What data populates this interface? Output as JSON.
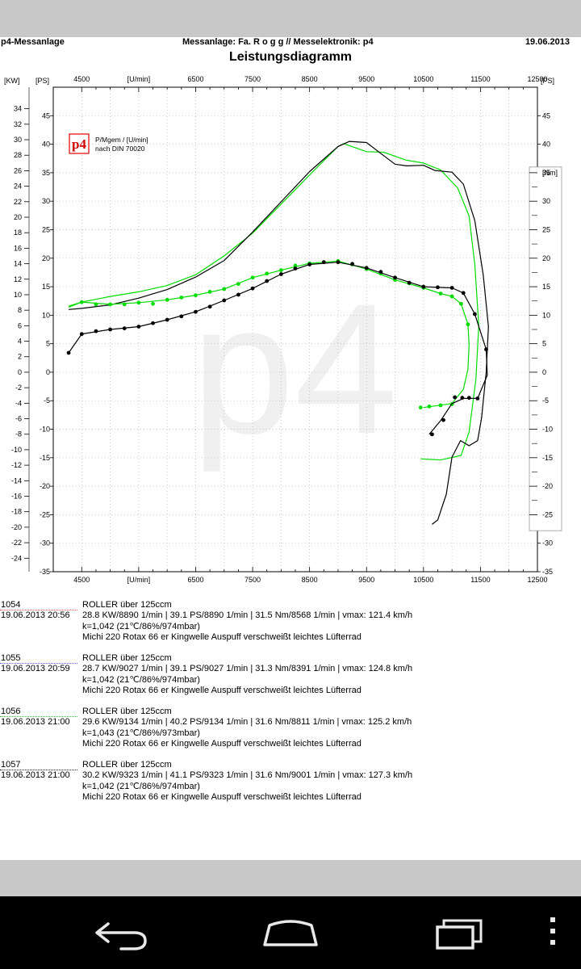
{
  "header": {
    "left": "p4-Messanlage",
    "center": "Messanlage: Fa. R o g g  //  Messelektronik: p4",
    "date": "19.06.2013",
    "title": "Leistungsdiagramm"
  },
  "chart_data": {
    "type": "line",
    "x_label": "[U/min]",
    "x_ticks": [
      "4500",
      "[U/min]",
      "6500",
      "7500",
      "8500",
      "9500",
      "10500",
      "11500",
      "12500"
    ],
    "xlim": [
      4000,
      12500
    ],
    "kw_unit": "[KW]",
    "ps_unit": "[PS]",
    "nm_unit": "[Nm]",
    "kw_ticks": [
      34,
      32,
      30,
      28,
      26,
      24,
      22,
      20,
      18,
      16,
      14,
      12,
      10,
      8,
      6,
      4,
      2,
      0,
      -2,
      -4,
      -6,
      -8,
      -10,
      -12,
      -14,
      -16,
      -18,
      -20,
      -22,
      -24
    ],
    "ps_ticks": [
      45,
      40,
      35,
      30,
      25,
      20,
      15,
      10,
      5,
      0,
      -5,
      -10,
      -15,
      -20,
      -25,
      -30,
      -35
    ],
    "nm_ticks": [
      35,
      30,
      25,
      20,
      15,
      10,
      5,
      0,
      -5,
      -10,
      -15,
      -20,
      -25
    ],
    "ps_range": [
      -35,
      50
    ],
    "legend_lines": [
      "P/Mgem / [U/min]",
      "nach DIN 70020"
    ],
    "logo_text": "p4",
    "watermark": "p4",
    "series": [
      {
        "kind": "power_ps",
        "color": "#00dd00",
        "points": [
          [
            4270,
            11.4
          ],
          [
            4500,
            12.3
          ],
          [
            5000,
            13.3
          ],
          [
            5500,
            14.1
          ],
          [
            6000,
            15.2
          ],
          [
            6500,
            17.1
          ],
          [
            7000,
            20.4
          ],
          [
            7500,
            24.4
          ],
          [
            8000,
            29.5
          ],
          [
            8500,
            34.6
          ],
          [
            9000,
            39.6
          ],
          [
            9100,
            40.1
          ],
          [
            9500,
            38.7
          ],
          [
            9800,
            38.6
          ],
          [
            10000,
            37.9
          ],
          [
            10200,
            37.2
          ],
          [
            10500,
            36.7
          ],
          [
            10800,
            35.5
          ],
          [
            11100,
            32.3
          ],
          [
            11300,
            27.4
          ],
          [
            11400,
            18.9
          ],
          [
            11470,
            8.2
          ],
          [
            11420,
            -1.2
          ],
          [
            11300,
            -10.5
          ],
          [
            11160,
            -14.6
          ],
          [
            10800,
            -15.4
          ],
          [
            10450,
            -15.2
          ]
        ]
      },
      {
        "kind": "power_ps",
        "color": "#000000",
        "points": [
          [
            4270,
            11.0
          ],
          [
            4500,
            11.2
          ],
          [
            5000,
            11.8
          ],
          [
            5500,
            13.0
          ],
          [
            6000,
            14.5
          ],
          [
            6500,
            16.7
          ],
          [
            7000,
            19.6
          ],
          [
            7500,
            24.6
          ],
          [
            8000,
            29.9
          ],
          [
            8500,
            35.2
          ],
          [
            9000,
            39.6
          ],
          [
            9200,
            40.5
          ],
          [
            9500,
            40.3
          ],
          [
            9800,
            38.0
          ],
          [
            10000,
            36.5
          ],
          [
            10200,
            36.2
          ],
          [
            10500,
            36.3
          ],
          [
            10700,
            35.4
          ],
          [
            11000,
            35.1
          ],
          [
            11200,
            33.0
          ],
          [
            11400,
            26.6
          ],
          [
            11550,
            17.0
          ],
          [
            11640,
            8.0
          ],
          [
            11600,
            0.0
          ],
          [
            11520,
            -8.0
          ],
          [
            11450,
            -12.0
          ],
          [
            11300,
            -12.9
          ],
          [
            11150,
            -12.0
          ],
          [
            11000,
            -14.9
          ],
          [
            10900,
            -21.4
          ],
          [
            10750,
            -25.9
          ],
          [
            10650,
            -26.7
          ]
        ]
      },
      {
        "kind": "torque_nm",
        "color": "#00dd00",
        "points": [
          [
            4270,
            11.6
          ],
          [
            4500,
            12.3
          ],
          [
            5000,
            11.9
          ],
          [
            5500,
            12.2
          ],
          [
            6000,
            12.7
          ],
          [
            6500,
            13.5
          ],
          [
            7000,
            14.6
          ],
          [
            7500,
            16.6
          ],
          [
            8000,
            17.9
          ],
          [
            8500,
            19.1
          ],
          [
            9000,
            19.5
          ],
          [
            9500,
            18.1
          ],
          [
            10000,
            16.2
          ],
          [
            10500,
            14.8
          ],
          [
            10800,
            13.8
          ],
          [
            11000,
            13.3
          ],
          [
            11160,
            12.0
          ],
          [
            11280,
            8.4
          ],
          [
            11300,
            4.8
          ],
          [
            11280,
            0.5
          ],
          [
            11200,
            -3.0
          ],
          [
            11000,
            -5.5
          ],
          [
            10500,
            -6.2
          ]
        ],
        "dots": [
          [
            4500,
            12.3
          ],
          [
            4750,
            11.9
          ],
          [
            5000,
            11.9
          ],
          [
            5250,
            11.9
          ],
          [
            5500,
            12.2
          ],
          [
            5750,
            12.0
          ],
          [
            6000,
            12.7
          ],
          [
            6250,
            13.1
          ],
          [
            6500,
            13.5
          ],
          [
            6750,
            14.1
          ],
          [
            7000,
            14.6
          ],
          [
            7250,
            15.5
          ],
          [
            7500,
            16.6
          ],
          [
            7750,
            17.3
          ],
          [
            8000,
            17.9
          ],
          [
            8250,
            18.7
          ],
          [
            8500,
            19.1
          ],
          [
            8750,
            19.3
          ],
          [
            9000,
            19.5
          ],
          [
            9250,
            18.9
          ],
          [
            9500,
            18.1
          ],
          [
            9750,
            17.3
          ],
          [
            10000,
            16.2
          ],
          [
            10250,
            15.6
          ],
          [
            10500,
            14.8
          ],
          [
            10800,
            13.8
          ],
          [
            11000,
            13.3
          ],
          [
            11160,
            12.0
          ],
          [
            11280,
            8.4
          ],
          [
            11000,
            -5.6
          ],
          [
            10800,
            -5.8
          ],
          [
            10600,
            -6.0
          ],
          [
            10450,
            -6.2
          ]
        ]
      },
      {
        "kind": "torque_nm",
        "color": "#000000",
        "points": [
          [
            4270,
            3.4
          ],
          [
            4500,
            6.7
          ],
          [
            5000,
            7.5
          ],
          [
            5500,
            8.0
          ],
          [
            6000,
            9.2
          ],
          [
            6500,
            10.6
          ],
          [
            7000,
            12.6
          ],
          [
            7500,
            14.7
          ],
          [
            8000,
            17.2
          ],
          [
            8500,
            18.9
          ],
          [
            9000,
            19.3
          ],
          [
            9500,
            18.3
          ],
          [
            10000,
            16.6
          ],
          [
            10500,
            15.0
          ],
          [
            11000,
            14.8
          ],
          [
            11200,
            13.9
          ],
          [
            11400,
            10.2
          ],
          [
            11600,
            4.0
          ],
          [
            11620,
            -0.5
          ],
          [
            11450,
            -4.6
          ],
          [
            11200,
            -4.6
          ],
          [
            11000,
            -5.5
          ],
          [
            10800,
            -8.5
          ],
          [
            10600,
            -10.9
          ]
        ],
        "dots": [
          [
            4270,
            3.4
          ],
          [
            4500,
            6.7
          ],
          [
            4750,
            7.2
          ],
          [
            5000,
            7.5
          ],
          [
            5250,
            7.7
          ],
          [
            5500,
            8.0
          ],
          [
            5750,
            8.6
          ],
          [
            6000,
            9.2
          ],
          [
            6250,
            9.8
          ],
          [
            6500,
            10.6
          ],
          [
            6750,
            11.5
          ],
          [
            7000,
            12.6
          ],
          [
            7250,
            13.6
          ],
          [
            7500,
            14.7
          ],
          [
            7750,
            16.0
          ],
          [
            8000,
            17.2
          ],
          [
            8250,
            18.2
          ],
          [
            8500,
            18.9
          ],
          [
            8750,
            19.3
          ],
          [
            9000,
            19.3
          ],
          [
            9250,
            19.0
          ],
          [
            9500,
            18.3
          ],
          [
            9750,
            17.6
          ],
          [
            10000,
            16.6
          ],
          [
            10250,
            15.7
          ],
          [
            10500,
            15.0
          ],
          [
            10750,
            14.9
          ],
          [
            11000,
            14.8
          ],
          [
            11200,
            13.9
          ],
          [
            11400,
            10.2
          ],
          [
            11600,
            4.0
          ],
          [
            11450,
            -4.6
          ],
          [
            11300,
            -4.5
          ],
          [
            11180,
            -4.5
          ],
          [
            11050,
            -4.4
          ],
          [
            10850,
            -8.4
          ],
          [
            10650,
            -10.9
          ]
        ]
      }
    ]
  },
  "runs": [
    {
      "num": "1054",
      "date": "19.06.2013  20:56",
      "line1": "ROLLER über 125ccm",
      "line2": "28.8 KW/8890 1/min  |  39.1 PS/8890 1/min  |  31.5 Nm/8568 1/min | vmax: 121.4 km/h",
      "line3": "k=1,042 (21℃/86%/974mbar)",
      "line4": "Michi 220 Rotax 66 er Kingwelle Auspuff verschweißt leichtes Lüfterrad",
      "color": "#e05050"
    },
    {
      "num": "1055",
      "date": "19.06.2013  20:59",
      "line1": "ROLLER über 125ccm",
      "line2": "28.7 KW/9027 1/min  |  39.1 PS/9027 1/min  |  31.3 Nm/8391 1/min | vmax: 124.8 km/h",
      "line3": "k=1,042 (21℃/86%/974mbar)",
      "line4": "Michi 220 Rotax 66 er Kingwelle Auspuff verschweißt leichtes Lüfterrad",
      "color": "#5060e0"
    },
    {
      "num": "1056",
      "date": "19.06.2013  21:00",
      "line1": "ROLLER über 125ccm",
      "line2": "29.6 KW/9134 1/min  |  40.2 PS/9134 1/min  |  31.6 Nm/8811 1/min | vmax: 125.2 km/h",
      "line3": "k=1,043 (21℃/86%/973mbar)",
      "line4": "Michi 220 Rotax 66 er Kingwelle Auspuff verschweißt leichtes Lüfterrad",
      "color": "#30c030"
    },
    {
      "num": "1057",
      "date": "19.06.2013  21:00",
      "line1": "ROLLER über 125ccm",
      "line2": "30.2 KW/9323 1/min  |  41.1 PS/9323 1/min  |  31.6 Nm/9001 1/min | vmax: 127.3 km/h",
      "line3": "k=1,042 (21℃/86%/974mbar)",
      "line4": "Michi 220 Rotax 66 er Kingwelle Auspuff verschweißt leichtes Lüfterrad",
      "color": "#222222"
    }
  ],
  "navbar": {
    "icons": [
      "back-icon",
      "home-icon",
      "recent-apps-icon",
      "menu-icon"
    ]
  }
}
